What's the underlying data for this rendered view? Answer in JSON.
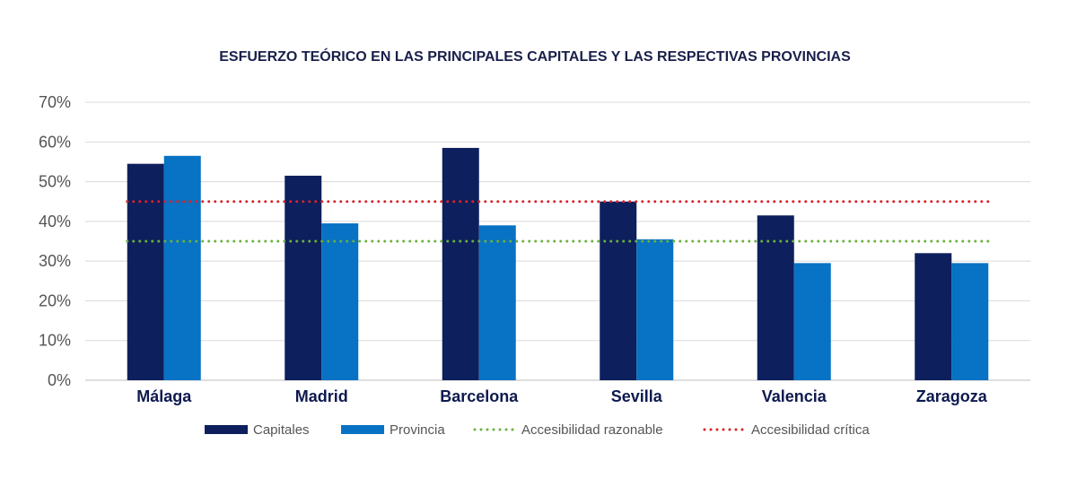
{
  "chart_data": {
    "type": "bar",
    "title": "ESFUERZO TEÓRICO EN LAS PRINCIPALES CAPITALES Y LAS RESPECTIVAS PROVINCIAS",
    "categories": [
      "Málaga",
      "Madrid",
      "Barcelona",
      "Sevilla",
      "Valencia",
      "Zaragoza"
    ],
    "series": [
      {
        "name": "Capitales",
        "color": "#0d1f5c",
        "values": [
          54.5,
          51.5,
          58.5,
          45,
          41.5,
          32
        ]
      },
      {
        "name": "Provincia",
        "color": "#0872c4",
        "values": [
          56.5,
          39.5,
          39,
          35.5,
          29.5,
          29.5
        ]
      }
    ],
    "reference_lines": [
      {
        "name": "Accesibilidad razonable",
        "color": "#6ab23e",
        "value": 35
      },
      {
        "name": "Accesibilidad crítica",
        "color": "#d9232a",
        "value": 45
      }
    ],
    "yticks": [
      "0%",
      "10%",
      "20%",
      "30%",
      "40%",
      "50%",
      "60%",
      "70%"
    ],
    "ylim": [
      0,
      70
    ],
    "xlabel": "",
    "ylabel": "",
    "grid": true,
    "legend_position": "bottom"
  }
}
